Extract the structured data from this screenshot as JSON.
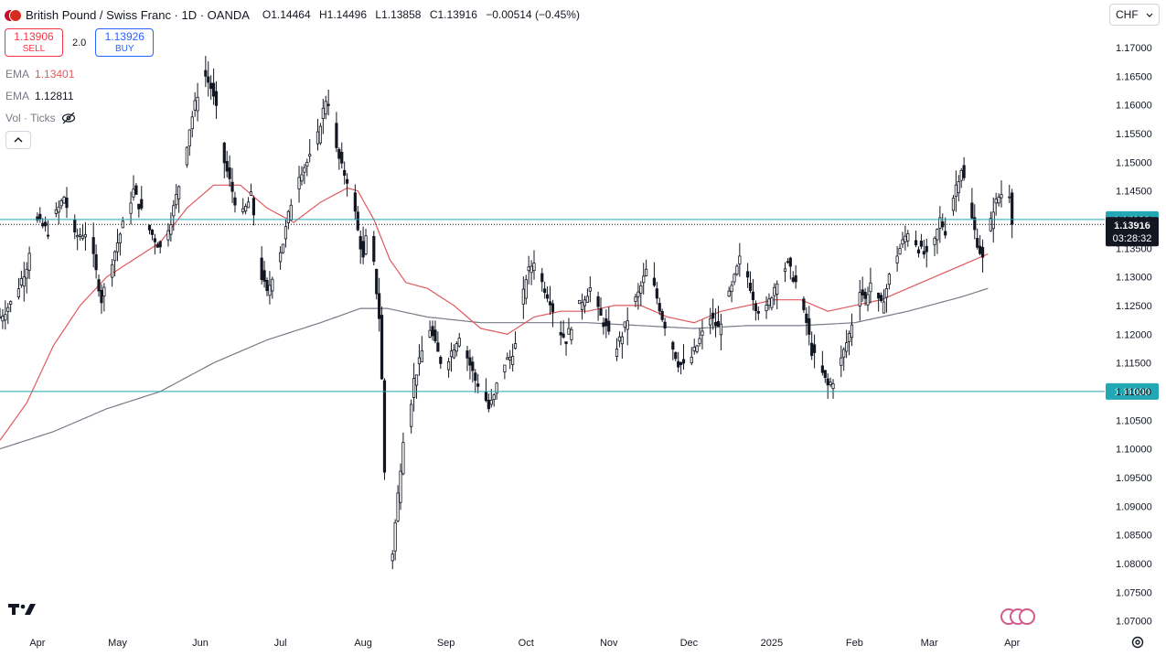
{
  "header": {
    "title": "British Pound / Swiss Franc · 1D · OANDA",
    "open_label": "O",
    "open": "1.14464",
    "high_label": "H",
    "high": "1.14496",
    "low_label": "L",
    "low": "1.13858",
    "close_label": "C",
    "close": "1.13916",
    "change": "−0.00514 (−0.45%)"
  },
  "trade": {
    "sell_price": "1.13906",
    "sell_label": "SELL",
    "spread": "2.0",
    "buy_price": "1.13926",
    "buy_label": "BUY"
  },
  "indicators": [
    {
      "name": "EMA",
      "value": "1.13401",
      "color": "#e0595f"
    },
    {
      "name": "EMA",
      "value": "1.12811",
      "color": "#787b86"
    },
    {
      "name": "Vol · Ticks",
      "value": ""
    }
  ],
  "currency_label": "CHF",
  "colors": {
    "candle": "#131722",
    "ema_fast": "#e0595f",
    "ema_slow": "#787b86",
    "hline": "#22a7b5",
    "price_tag_bg": "#131722"
  },
  "icons": [
    "eye-off-icon",
    "chevron-up-icon",
    "chevron-down-icon",
    "tradingview-logo-icon",
    "events-flag-icon",
    "settings-icon"
  ],
  "chart_data": {
    "type": "candlestick",
    "y_axis": {
      "min": 1.0685,
      "max": 1.1735,
      "ticks": [
        "1.17000",
        "1.16500",
        "1.16000",
        "1.15500",
        "1.15000",
        "1.14500",
        "1.14000",
        "1.13500",
        "1.13000",
        "1.12500",
        "1.12000",
        "1.11500",
        "1.11000",
        "1.10500",
        "1.10000",
        "1.09500",
        "1.09000",
        "1.08500",
        "1.08000",
        "1.07500",
        "1.07000"
      ]
    },
    "x_axis": {
      "labels": [
        {
          "label": "Apr",
          "day": 14
        },
        {
          "label": "May",
          "day": 44
        },
        {
          "label": "Jun",
          "day": 75
        },
        {
          "label": "Jul",
          "day": 105
        },
        {
          "label": "Aug",
          "day": 136
        },
        {
          "label": "Sep",
          "day": 167
        },
        {
          "label": "Oct",
          "day": 197
        },
        {
          "label": "Nov",
          "day": 228
        },
        {
          "label": "Dec",
          "day": 258
        },
        {
          "label": "2025",
          "day": 289
        },
        {
          "label": "Feb",
          "day": 320
        },
        {
          "label": "Mar",
          "day": 348
        },
        {
          "label": "Apr",
          "day": 379
        }
      ]
    },
    "horizontal_lines": [
      {
        "price": 1.14,
        "label": "1.14000"
      },
      {
        "price": 1.11,
        "label": "1.11000"
      }
    ],
    "current_price": {
      "price": 1.13916,
      "label": "1.13916",
      "countdown": "03:28:32"
    },
    "series": [
      {
        "name": "Price",
        "anchors": [
          [
            0,
            1.123
          ],
          [
            5,
            1.126
          ],
          [
            10,
            1.132
          ],
          [
            13,
            1.14
          ],
          [
            18,
            1.138
          ],
          [
            24,
            1.144
          ],
          [
            28,
            1.137
          ],
          [
            33,
            1.138
          ],
          [
            38,
            1.126
          ],
          [
            42,
            1.133
          ],
          [
            46,
            1.139
          ],
          [
            50,
            1.145
          ],
          [
            55,
            1.139
          ],
          [
            60,
            1.135
          ],
          [
            64,
            1.14
          ],
          [
            68,
            1.148
          ],
          [
            71,
            1.156
          ],
          [
            74,
            1.162
          ],
          [
            76,
            1.166
          ],
          [
            79,
            1.163
          ],
          [
            82,
            1.157
          ],
          [
            84,
            1.15
          ],
          [
            87,
            1.145
          ],
          [
            90,
            1.14
          ],
          [
            92,
            1.142
          ],
          [
            94,
            1.144
          ],
          [
            96,
            1.138
          ],
          [
            98,
            1.13
          ],
          [
            100,
            1.127
          ],
          [
            103,
            1.132
          ],
          [
            106,
            1.136
          ],
          [
            109,
            1.143
          ],
          [
            112,
            1.148
          ],
          [
            115,
            1.15
          ],
          [
            118,
            1.152
          ],
          [
            120,
            1.157
          ],
          [
            122,
            1.161
          ],
          [
            124,
            1.16
          ],
          [
            126,
            1.152
          ],
          [
            128,
            1.149
          ],
          [
            130,
            1.147
          ],
          [
            132,
            1.144
          ],
          [
            134,
            1.138
          ],
          [
            136,
            1.133
          ],
          [
            138,
            1.14
          ],
          [
            140,
            1.132
          ],
          [
            142,
            1.123
          ],
          [
            143,
            1.112
          ],
          [
            144,
            1.096
          ],
          [
            145,
            1.08
          ],
          [
            147,
            1.082
          ],
          [
            149,
            1.092
          ],
          [
            151,
            1.102
          ],
          [
            153,
            1.105
          ],
          [
            155,
            1.112
          ],
          [
            157,
            1.115
          ],
          [
            159,
            1.119
          ],
          [
            161,
            1.121
          ],
          [
            163,
            1.118
          ],
          [
            166,
            1.114
          ],
          [
            169,
            1.117
          ],
          [
            172,
            1.12
          ],
          [
            175,
            1.116
          ],
          [
            178,
            1.112
          ],
          [
            181,
            1.11
          ],
          [
            183,
            1.107
          ],
          [
            185,
            1.109
          ],
          [
            187,
            1.113
          ],
          [
            189,
            1.115
          ],
          [
            191,
            1.116
          ],
          [
            193,
            1.118
          ],
          [
            195,
            1.124
          ],
          [
            197,
            1.13
          ],
          [
            200,
            1.133
          ],
          [
            203,
            1.129
          ],
          [
            206,
            1.126
          ],
          [
            209,
            1.121
          ],
          [
            212,
            1.119
          ],
          [
            215,
            1.123
          ],
          [
            218,
            1.126
          ],
          [
            221,
            1.128
          ],
          [
            224,
            1.124
          ],
          [
            227,
            1.121
          ],
          [
            230,
            1.117
          ],
          [
            233,
            1.12
          ],
          [
            236,
            1.124
          ],
          [
            239,
            1.127
          ],
          [
            242,
            1.131
          ],
          [
            245,
            1.128
          ],
          [
            248,
            1.123
          ],
          [
            251,
            1.119
          ],
          [
            254,
            1.115
          ],
          [
            257,
            1.114
          ],
          [
            260,
            1.117
          ],
          [
            263,
            1.12
          ],
          [
            266,
            1.123
          ],
          [
            269,
            1.121
          ],
          [
            271,
            1.124
          ],
          [
            274,
            1.128
          ],
          [
            277,
            1.133
          ],
          [
            280,
            1.13
          ],
          [
            283,
            1.125
          ],
          [
            286,
            1.123
          ],
          [
            289,
            1.127
          ],
          [
            292,
            1.131
          ],
          [
            295,
            1.132
          ],
          [
            298,
            1.129
          ],
          [
            300,
            1.125
          ],
          [
            302,
            1.122
          ],
          [
            304,
            1.117
          ],
          [
            306,
            1.115
          ],
          [
            308,
            1.113
          ],
          [
            310,
            1.111
          ],
          [
            312,
            1.112
          ],
          [
            314,
            1.114
          ],
          [
            316,
            1.117
          ],
          [
            318,
            1.12
          ],
          [
            320,
            1.124
          ],
          [
            322,
            1.128
          ],
          [
            324,
            1.126
          ],
          [
            326,
            1.129
          ],
          [
            328,
            1.126
          ],
          [
            330,
            1.125
          ],
          [
            332,
            1.128
          ],
          [
            334,
            1.132
          ],
          [
            336,
            1.134
          ],
          [
            338,
            1.136
          ],
          [
            340,
            1.138
          ],
          [
            342,
            1.137
          ],
          [
            344,
            1.135
          ],
          [
            346,
            1.134
          ],
          [
            348,
            1.133
          ],
          [
            350,
            1.136
          ],
          [
            352,
            1.14
          ],
          [
            354,
            1.138
          ],
          [
            356,
            1.142
          ],
          [
            358,
            1.146
          ],
          [
            360,
            1.149
          ],
          [
            362,
            1.145
          ],
          [
            364,
            1.14
          ],
          [
            366,
            1.136
          ],
          [
            368,
            1.133
          ],
          [
            370,
            1.137
          ],
          [
            372,
            1.142
          ],
          [
            374,
            1.144
          ],
          [
            376,
            1.145
          ],
          [
            378,
            1.1446
          ],
          [
            379,
            1.13916
          ]
        ]
      },
      {
        "name": "EMA",
        "anchors": [
          [
            0,
            1.1015
          ],
          [
            10,
            1.108
          ],
          [
            20,
            1.118
          ],
          [
            30,
            1.125
          ],
          [
            40,
            1.13
          ],
          [
            50,
            1.133
          ],
          [
            60,
            1.136
          ],
          [
            70,
            1.142
          ],
          [
            80,
            1.146
          ],
          [
            90,
            1.146
          ],
          [
            100,
            1.142
          ],
          [
            110,
            1.1395
          ],
          [
            120,
            1.143
          ],
          [
            130,
            1.1455
          ],
          [
            134,
            1.145
          ],
          [
            140,
            1.14
          ],
          [
            146,
            1.133
          ],
          [
            152,
            1.129
          ],
          [
            160,
            1.128
          ],
          [
            170,
            1.125
          ],
          [
            180,
            1.121
          ],
          [
            190,
            1.12
          ],
          [
            200,
            1.123
          ],
          [
            210,
            1.124
          ],
          [
            220,
            1.124
          ],
          [
            230,
            1.125
          ],
          [
            240,
            1.125
          ],
          [
            250,
            1.123
          ],
          [
            260,
            1.122
          ],
          [
            270,
            1.124
          ],
          [
            280,
            1.125
          ],
          [
            290,
            1.126
          ],
          [
            300,
            1.126
          ],
          [
            310,
            1.124
          ],
          [
            320,
            1.125
          ],
          [
            330,
            1.126
          ],
          [
            340,
            1.128
          ],
          [
            350,
            1.13
          ],
          [
            360,
            1.132
          ],
          [
            370,
            1.134
          ]
        ]
      },
      {
        "name": "EMA",
        "anchors": [
          [
            0,
            1.1
          ],
          [
            20,
            1.103
          ],
          [
            40,
            1.107
          ],
          [
            60,
            1.11
          ],
          [
            80,
            1.115
          ],
          [
            100,
            1.119
          ],
          [
            120,
            1.122
          ],
          [
            135,
            1.1245
          ],
          [
            145,
            1.1245
          ],
          [
            160,
            1.123
          ],
          [
            180,
            1.122
          ],
          [
            200,
            1.122
          ],
          [
            220,
            1.122
          ],
          [
            240,
            1.1215
          ],
          [
            260,
            1.121
          ],
          [
            280,
            1.1215
          ],
          [
            300,
            1.1215
          ],
          [
            320,
            1.122
          ],
          [
            340,
            1.124
          ],
          [
            360,
            1.1265
          ],
          [
            370,
            1.128
          ]
        ]
      }
    ]
  }
}
